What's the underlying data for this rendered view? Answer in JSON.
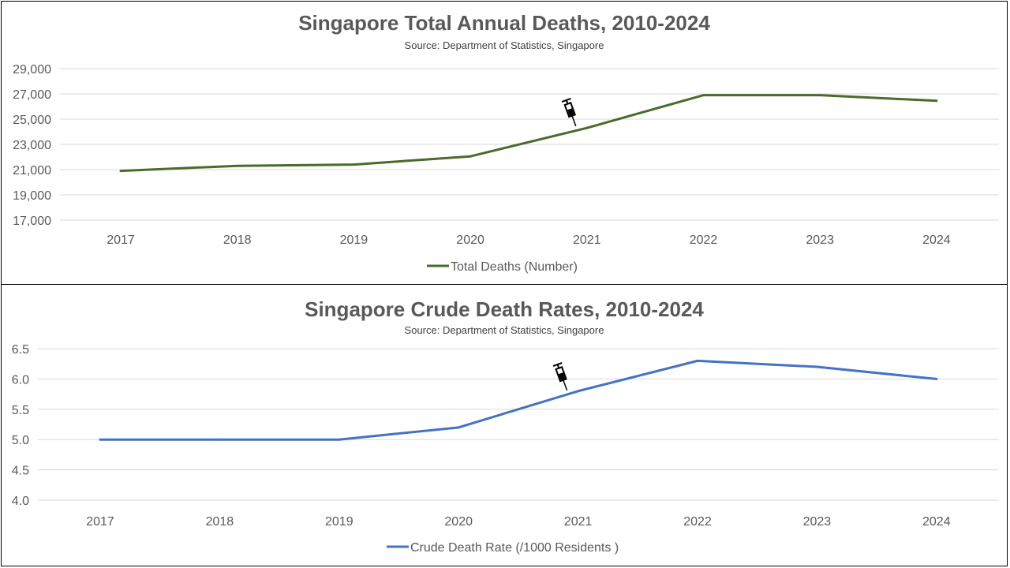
{
  "charts": [
    {
      "title": "Singapore Total Annual Deaths, 2010-2024",
      "source": "Source: Department of Statistics, Singapore",
      "legend_label": "Total Deaths (Number)",
      "marker_icon": "syringe-icon"
    },
    {
      "title": "Singapore Crude Death Rates, 2010-2024",
      "source": "Source: Department of Statistics, Singapore",
      "legend_label": "Crude Death Rate (/1000 Residents )",
      "marker_icon": "syringe-icon"
    }
  ],
  "chart_data": [
    {
      "type": "line",
      "title": "Singapore Total Annual Deaths, 2010-2024",
      "subtitle": "Source: Department of Statistics, Singapore",
      "x": [
        "2017",
        "2018",
        "2019",
        "2020",
        "2021",
        "2022",
        "2023",
        "2024"
      ],
      "series": [
        {
          "name": "Total Deaths (Number)",
          "values": [
            20900,
            21300,
            21400,
            22050,
            24300,
            26900,
            26900,
            26450
          ],
          "color": "#4a6b2a"
        }
      ],
      "y_ticks": [
        17000,
        19000,
        21000,
        23000,
        25000,
        27000,
        29000
      ],
      "y_tick_labels": [
        "17,000",
        "19,000",
        "21,000",
        "23,000",
        "25,000",
        "27,000",
        "29,000"
      ],
      "ylim": [
        17000,
        29000
      ],
      "grid": true,
      "legend": "bottom",
      "annotation": {
        "icon": "syringe",
        "x": "2021"
      }
    },
    {
      "type": "line",
      "title": "Singapore Crude Death Rates, 2010-2024",
      "subtitle": "Source: Department of Statistics, Singapore",
      "x": [
        "2017",
        "2018",
        "2019",
        "2020",
        "2021",
        "2022",
        "2023",
        "2024"
      ],
      "series": [
        {
          "name": "Crude Death Rate (/1000 Residents )",
          "values": [
            5.0,
            5.0,
            5.0,
            5.2,
            5.8,
            6.3,
            6.2,
            6.0
          ],
          "color": "#4472c4"
        }
      ],
      "y_ticks": [
        4.0,
        4.5,
        5.0,
        5.5,
        6.0,
        6.5
      ],
      "y_tick_labels": [
        "4.0",
        "4.5",
        "5.0",
        "5.5",
        "6.0",
        "6.5"
      ],
      "ylim": [
        4.0,
        6.5
      ],
      "grid": true,
      "legend": "bottom",
      "annotation": {
        "icon": "syringe",
        "x": "2021"
      }
    }
  ]
}
